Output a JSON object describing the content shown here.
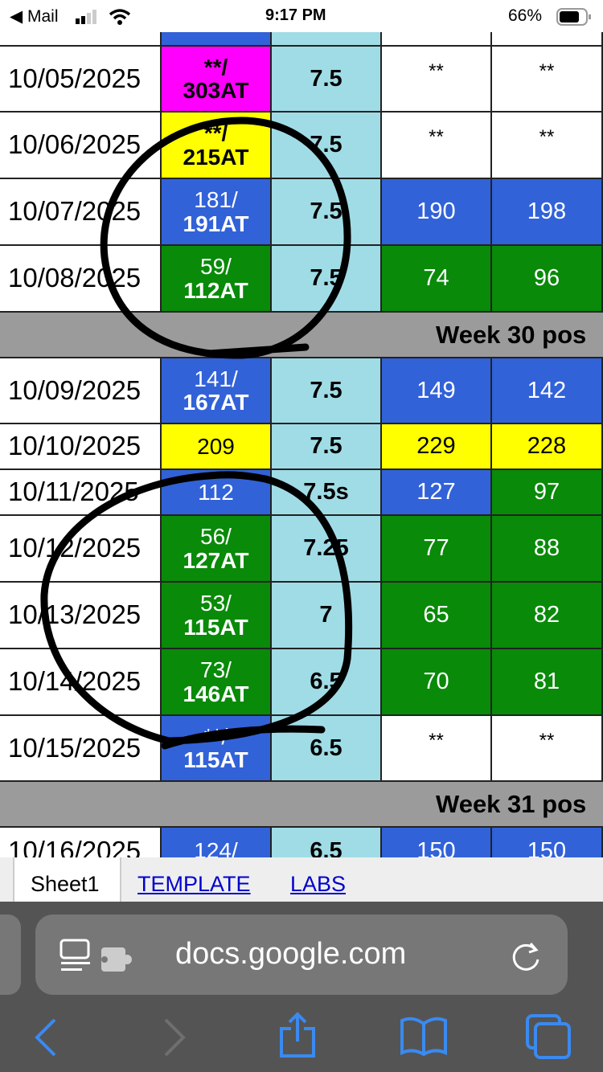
{
  "status_bar": {
    "back_app": "◀ Mail",
    "time": "9:17 PM",
    "battery": "66%"
  },
  "colors": {
    "blue": "#3262d8",
    "green": "#098a09",
    "yellow": "#ffff00",
    "magenta": "#ff00ff",
    "light_blue": "#a0dce6",
    "band": "#9b9b9b"
  },
  "rows": [
    {
      "date": "10/05/2025",
      "c1a": "**/",
      "c1b": "303AT",
      "c1bg": "magenta",
      "c2": "7.5",
      "c3": "**",
      "c3bg": "white",
      "c4": "**",
      "c4bg": "white"
    },
    {
      "date": "10/06/2025",
      "c1a": "**/",
      "c1b": "215AT",
      "c1bg": "yellow",
      "c2": "7.5",
      "c3": "**",
      "c3bg": "white",
      "c4": "**",
      "c4bg": "white"
    },
    {
      "date": "10/07/2025",
      "c1a": "181/",
      "c1b": "191AT",
      "c1bg": "blue",
      "c2": "7.5",
      "c3": "190",
      "c3bg": "blue",
      "c4": "198",
      "c4bg": "blue"
    },
    {
      "date": "10/08/2025",
      "c1a": "59/",
      "c1b": "112AT",
      "c1bg": "green",
      "c2": "7.5",
      "c3": "74",
      "c3bg": "green",
      "c4": "96",
      "c4bg": "green"
    },
    {
      "band": "Week 30 pos"
    },
    {
      "date": "10/09/2025",
      "c1a": "141/",
      "c1b": "167AT",
      "c1bg": "blue",
      "c2": "7.5",
      "c3": "149",
      "c3bg": "blue",
      "c4": "142",
      "c4bg": "blue"
    },
    {
      "date": "10/10/2025",
      "c1a": "209",
      "c1b": "",
      "c1bg": "yellow",
      "c2": "7.5",
      "c3": "229",
      "c3bg": "yellow",
      "c4": "228",
      "c4bg": "yellow"
    },
    {
      "date": "10/11/2025",
      "c1a": "112",
      "c1b": "",
      "c1bg": "blue",
      "c2": "7.5s",
      "c3": "127",
      "c3bg": "blue",
      "c4": "97",
      "c4bg": "green"
    },
    {
      "date": "10/12/2025",
      "c1a": "56/",
      "c1b": "127AT",
      "c1bg": "green",
      "c2": "7.25",
      "c3": "77",
      "c3bg": "green",
      "c4": "88",
      "c4bg": "green"
    },
    {
      "date": "10/13/2025",
      "c1a": "53/",
      "c1b": "115AT",
      "c1bg": "green",
      "c2": "7",
      "c3": "65",
      "c3bg": "green",
      "c4": "82",
      "c4bg": "green"
    },
    {
      "date": "10/14/2025",
      "c1a": "73/",
      "c1b": "146AT",
      "c1bg": "green",
      "c2": "6.5",
      "c3": "70",
      "c3bg": "green",
      "c4": "81",
      "c4bg": "green"
    },
    {
      "date": "10/15/2025",
      "c1a": "**/",
      "c1b": "115AT",
      "c1bg": "blue",
      "c2": "6.5",
      "c3": "**",
      "c3bg": "white",
      "c4": "**",
      "c4bg": "white"
    },
    {
      "band": "Week 31 pos"
    },
    {
      "date": "10/16/2025",
      "c1a": "124/",
      "c1b": "",
      "c1bg": "blue",
      "c2": "6.5",
      "c3": "150",
      "c3bg": "blue",
      "c4": "150",
      "c4bg": "blue"
    }
  ],
  "sheet_tabs": [
    "Sheet1",
    "TEMPLATE",
    "LABS"
  ],
  "browser": {
    "url": "docs.google.com"
  }
}
